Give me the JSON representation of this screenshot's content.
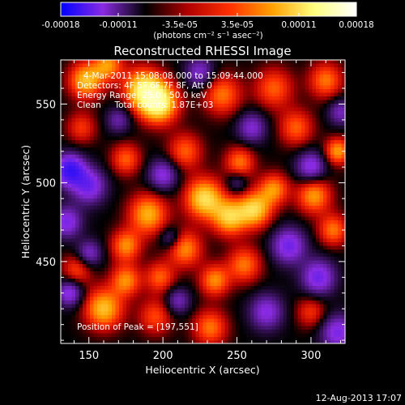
{
  "chart_data": {
    "type": "heatmap",
    "title": "Reconstructed RHESSI Image",
    "xlabel": "Heliocentric X (arcsec)",
    "ylabel": "Heliocentric Y (arcsec)",
    "xlim": [
      131,
      323
    ],
    "ylim": [
      398,
      578
    ],
    "x_ticks": [
      150,
      200,
      250,
      300
    ],
    "y_ticks": [
      450,
      500,
      550
    ],
    "colorbar": {
      "ticks": [
        "-0.00018",
        "-0.00011",
        "-3.5e-05",
        "3.5e-05",
        "0.00011",
        "0.00018"
      ],
      "tick_values": [
        -0.00018,
        -0.00011,
        -3.5e-05,
        3.5e-05,
        0.00011,
        0.00018
      ],
      "range": [
        -0.00018,
        0.00018
      ],
      "unit_label": "(photons cm⁻² s⁻¹ asec⁻²)",
      "colormap": [
        "#0000ff",
        "#8a2be2",
        "#000000",
        "#b00000",
        "#ff3000",
        "#ffa000",
        "#ffff80",
        "#ffffff"
      ]
    },
    "annotations": [
      "4-Mar-2011 15:08:08.000 to 15:09:44.000",
      "Detectors: 4F 5F 6F 7F 8F, Att 0",
      "Energy Range: 25.0 - 50.0 keV",
      "Clean     Total counts: 1.87E+03"
    ],
    "peak_label": "Position of Peak = [197,551]",
    "peak": [
      197,
      551
    ],
    "timestamp": "12-Aug-2013 17:07",
    "blobs": [
      {
        "x": 197,
        "y": 551,
        "a": 1.0,
        "s": 9
      },
      {
        "x": 186,
        "y": 560,
        "a": 0.75,
        "s": 9
      },
      {
        "x": 148,
        "y": 565,
        "a": 0.7,
        "s": 8
      },
      {
        "x": 163,
        "y": 575,
        "a": 0.55,
        "s": 7
      },
      {
        "x": 240,
        "y": 556,
        "a": 0.5,
        "s": 9
      },
      {
        "x": 275,
        "y": 560,
        "a": 0.45,
        "s": 9
      },
      {
        "x": 310,
        "y": 565,
        "a": 0.5,
        "s": 8
      },
      {
        "x": 290,
        "y": 535,
        "a": 0.45,
        "s": 8
      },
      {
        "x": 318,
        "y": 520,
        "a": 0.6,
        "s": 6
      },
      {
        "x": 252,
        "y": 513,
        "a": 0.5,
        "s": 7
      },
      {
        "x": 215,
        "y": 520,
        "a": 0.45,
        "s": 8
      },
      {
        "x": 175,
        "y": 515,
        "a": 0.45,
        "s": 7
      },
      {
        "x": 145,
        "y": 535,
        "a": 0.35,
        "s": 7
      },
      {
        "x": 228,
        "y": 490,
        "a": 0.8,
        "s": 9
      },
      {
        "x": 262,
        "y": 483,
        "a": 0.75,
        "s": 8
      },
      {
        "x": 245,
        "y": 478,
        "a": 0.7,
        "s": 8
      },
      {
        "x": 275,
        "y": 496,
        "a": 0.55,
        "s": 7
      },
      {
        "x": 302,
        "y": 492,
        "a": 0.6,
        "s": 8
      },
      {
        "x": 315,
        "y": 470,
        "a": 0.5,
        "s": 7
      },
      {
        "x": 190,
        "y": 480,
        "a": 0.65,
        "s": 9
      },
      {
        "x": 175,
        "y": 460,
        "a": 0.55,
        "s": 7
      },
      {
        "x": 215,
        "y": 458,
        "a": 0.55,
        "s": 8
      },
      {
        "x": 255,
        "y": 448,
        "a": 0.5,
        "s": 8
      },
      {
        "x": 235,
        "y": 438,
        "a": 0.55,
        "s": 7
      },
      {
        "x": 198,
        "y": 440,
        "a": 0.45,
        "s": 7
      },
      {
        "x": 160,
        "y": 420,
        "a": 0.7,
        "s": 9
      },
      {
        "x": 175,
        "y": 438,
        "a": 0.55,
        "s": 7
      },
      {
        "x": 142,
        "y": 445,
        "a": 0.4,
        "s": 7
      },
      {
        "x": 195,
        "y": 415,
        "a": 0.4,
        "s": 8
      },
      {
        "x": 232,
        "y": 408,
        "a": 0.5,
        "s": 8
      },
      {
        "x": 300,
        "y": 418,
        "a": 0.35,
        "s": 7
      },
      {
        "x": 150,
        "y": 498,
        "a": -0.6,
        "s": 8
      },
      {
        "x": 137,
        "y": 508,
        "a": -0.9,
        "s": 7
      },
      {
        "x": 200,
        "y": 505,
        "a": -0.5,
        "s": 7
      },
      {
        "x": 300,
        "y": 510,
        "a": -0.55,
        "s": 7
      },
      {
        "x": 285,
        "y": 460,
        "a": -0.6,
        "s": 8
      },
      {
        "x": 305,
        "y": 440,
        "a": -0.6,
        "s": 8
      },
      {
        "x": 318,
        "y": 405,
        "a": -0.55,
        "s": 8
      },
      {
        "x": 270,
        "y": 418,
        "a": -0.5,
        "s": 8
      },
      {
        "x": 135,
        "y": 475,
        "a": -0.55,
        "s": 7
      },
      {
        "x": 150,
        "y": 455,
        "a": -0.45,
        "s": 6
      },
      {
        "x": 137,
        "y": 430,
        "a": -0.55,
        "s": 6
      },
      {
        "x": 210,
        "y": 425,
        "a": -0.4,
        "s": 6
      },
      {
        "x": 260,
        "y": 535,
        "a": -0.45,
        "s": 7
      },
      {
        "x": 225,
        "y": 570,
        "a": -0.45,
        "s": 7
      },
      {
        "x": 320,
        "y": 545,
        "a": -0.4,
        "s": 6
      },
      {
        "x": 170,
        "y": 540,
        "a": -0.35,
        "s": 6
      },
      {
        "x": 205,
        "y": 465,
        "a": -0.35,
        "s": 5
      },
      {
        "x": 250,
        "y": 500,
        "a": -0.3,
        "s": 5
      }
    ]
  }
}
